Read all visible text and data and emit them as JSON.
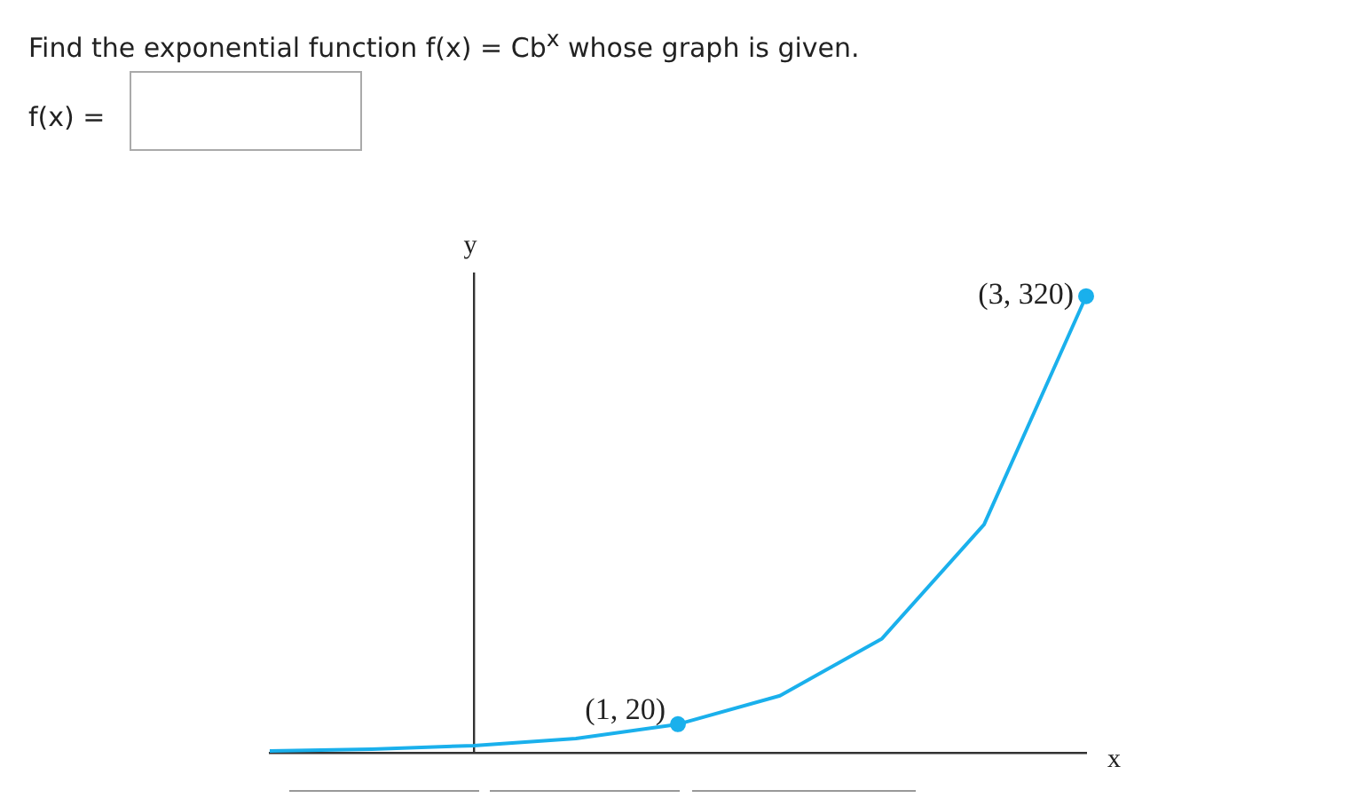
{
  "chart_data": {
    "type": "line",
    "title": "Find the exponential function f(x) = Cb$^{x}$ whose graph is given.",
    "xlabel": "x",
    "ylabel": "y",
    "ylim": [
      0,
      336
    ],
    "tick_labels": false,
    "categories": [
      null,
      null,
      null,
      null,
      null,
      null,
      null,
      null,
      null
    ],
    "series": [
      {
        "color": "#1ab0ec",
        "values": [
          1.25,
          2.5,
          5,
          10,
          20,
          40,
          80,
          160,
          320
        ],
        "value_labels": [
          null,
          null,
          null,
          null,
          "(1, 20)",
          null,
          null,
          null,
          "(3, 320)"
        ]
      }
    ],
    "annotations": [
      "f(x) ="
    ]
  }
}
